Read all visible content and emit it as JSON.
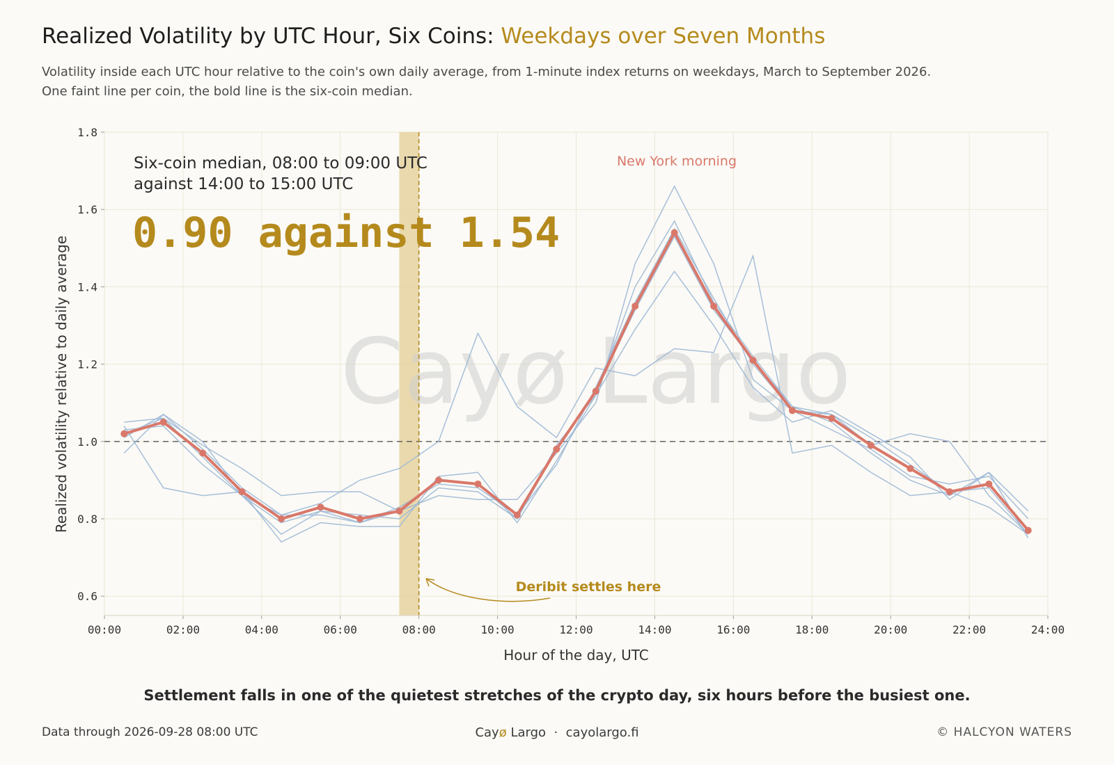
{
  "header": {
    "title_main": "Realized Volatility by UTC Hour, Six Coins: ",
    "title_accent": "Weekdays over Seven Months",
    "subtitle": "Volatility inside each UTC hour relative to the coin's own daily average, from 1-minute index returns on weekdays, March to September 2026. One faint line per coin, the bold line is the six-coin median."
  },
  "watermark": "Cayø Largo",
  "annotation": {
    "line1": "Six-coin median, 08:00 to 09:00 UTC",
    "line2": "against 14:00 to 15:00 UTC",
    "big": "0.90 against 1.54",
    "ny_label": "New York morning",
    "deribit_label": "Deribit settles here"
  },
  "chart_data": {
    "type": "line",
    "title": "Realized Volatility by UTC Hour, Six Coins: Weekdays over Seven Months",
    "xlabel": "Hour of the day, UTC",
    "ylabel": "Realized volatility relative to daily average",
    "xlim": [
      0,
      24
    ],
    "ylim": [
      0.55,
      1.8
    ],
    "x_ticks": [
      0,
      2,
      4,
      6,
      8,
      10,
      12,
      14,
      16,
      18,
      20,
      22,
      24
    ],
    "x_tick_labels": [
      "00:00",
      "02:00",
      "04:00",
      "06:00",
      "08:00",
      "10:00",
      "12:00",
      "14:00",
      "16:00",
      "18:00",
      "20:00",
      "22:00",
      "24:00"
    ],
    "y_ticks": [
      0.6,
      0.8,
      1.0,
      1.2,
      1.4,
      1.6,
      1.8
    ],
    "y_tick_labels": [
      "0.6",
      "0.8",
      "1.0",
      "1.2",
      "1.4",
      "1.6",
      "1.8"
    ],
    "reference_line": 1.0,
    "settlement_hour": 8,
    "settlement_band": [
      7.5,
      8
    ],
    "x": [
      0.5,
      1.5,
      2.5,
      3.5,
      4.5,
      5.5,
      6.5,
      7.5,
      8.5,
      9.5,
      10.5,
      11.5,
      12.5,
      13.5,
      14.5,
      15.5,
      16.5,
      17.5,
      18.5,
      19.5,
      20.5,
      21.5,
      22.5,
      23.5
    ],
    "median": [
      1.02,
      1.05,
      0.97,
      0.87,
      0.8,
      0.83,
      0.8,
      0.82,
      0.9,
      0.89,
      0.81,
      0.98,
      1.13,
      1.35,
      1.54,
      1.35,
      1.21,
      1.08,
      1.06,
      0.99,
      0.93,
      0.87,
      0.89,
      0.77
    ],
    "coins": [
      [
        1.05,
        1.06,
        0.99,
        0.93,
        0.86,
        0.87,
        0.87,
        0.82,
        0.86,
        0.85,
        0.85,
        0.97,
        1.1,
        1.46,
        1.66,
        1.46,
        1.16,
        1.08,
        1.03,
        0.98,
        0.91,
        0.89,
        0.91,
        0.8
      ],
      [
        0.97,
        1.07,
        0.98,
        0.88,
        0.81,
        0.84,
        0.9,
        0.93,
        1.0,
        1.28,
        1.09,
        1.01,
        1.19,
        1.17,
        1.24,
        1.23,
        1.48,
        0.97,
        0.99,
        0.92,
        0.86,
        0.87,
        0.83,
        0.76
      ],
      [
        1.04,
        0.88,
        0.86,
        0.87,
        0.74,
        0.79,
        0.78,
        0.78,
        0.91,
        0.92,
        0.79,
        0.95,
        1.12,
        1.29,
        1.44,
        1.3,
        1.14,
        1.05,
        1.08,
        1.02,
        0.96,
        0.85,
        0.92,
        0.82
      ],
      [
        1.01,
        1.07,
        1.0,
        0.86,
        0.76,
        0.82,
        0.81,
        0.8,
        0.88,
        0.87,
        0.8,
        0.99,
        1.12,
        1.4,
        1.57,
        1.36,
        1.22,
        1.09,
        1.05,
        0.97,
        0.9,
        0.86,
        0.92,
        0.75
      ],
      [
        1.03,
        1.04,
        0.94,
        0.86,
        0.81,
        0.81,
        0.79,
        0.83,
        0.89,
        0.88,
        0.81,
        0.94,
        1.14,
        1.36,
        1.55,
        1.37,
        1.2,
        1.08,
        1.07,
        1.01,
        0.94,
        0.87,
        0.88,
        0.76
      ],
      [
        1.02,
        1.06,
        0.96,
        0.86,
        0.79,
        0.82,
        0.79,
        0.82,
        0.9,
        0.89,
        0.8,
        0.98,
        1.13,
        1.34,
        1.53,
        1.34,
        1.21,
        1.09,
        1.07,
        0.99,
        1.02,
        1.0,
        0.86,
        0.76
      ]
    ],
    "median_color": "#d9786a",
    "coin_color": "#9db8d6",
    "band_color": "#e5d2a0",
    "settle_color": "#b58a1d",
    "grid": true
  },
  "caption": "Settlement falls in one of the quietest stretches of the crypto day, six hours before the busiest one.",
  "footer": {
    "data_through": "Data through 2026-09-28 08:00 UTC",
    "brand_pre": "Cay",
    "brand_o": "ø",
    "brand_post": " Largo",
    "brand_sep": "  ·  ",
    "brand_url": "cayolargo.fi",
    "credit": "© HALCYON WATERS"
  }
}
